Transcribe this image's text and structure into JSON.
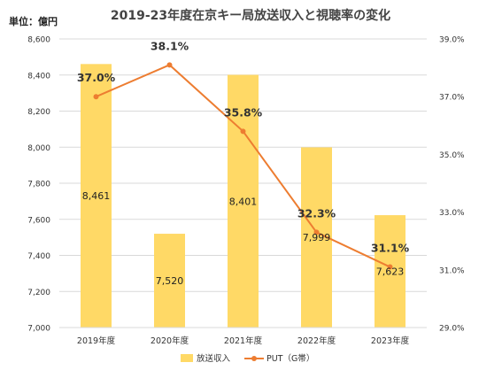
{
  "chart_data": {
    "type": "bar",
    "title": "2019-23年度在京キー局放送収入と視聴率の変化",
    "unit_label": "単位：億円",
    "categories": [
      "2019年度",
      "2020年度",
      "2021年度",
      "2022年度",
      "2023年度"
    ],
    "series": [
      {
        "name": "放送収入",
        "type": "bar",
        "axis": "left",
        "values": [
          8461,
          7520,
          8401,
          7999,
          7623
        ],
        "labels": [
          "8,461",
          "7,520",
          "8,401",
          "7,999",
          "7,623"
        ],
        "color": "#FFD966"
      },
      {
        "name": "PUT（G帯）",
        "type": "line",
        "axis": "right",
        "values": [
          37.0,
          38.1,
          35.8,
          32.3,
          31.1
        ],
        "labels": [
          "37.0%",
          "38.1%",
          "35.8%",
          "32.3%",
          "31.1%"
        ],
        "color": "#ED7D31"
      }
    ],
    "y_left": {
      "ylim": [
        7000,
        8600
      ],
      "ticks": [
        7000,
        7200,
        7400,
        7600,
        7800,
        8000,
        8200,
        8400,
        8600
      ],
      "tick_labels": [
        "7,000",
        "7,200",
        "7,400",
        "7,600",
        "7,800",
        "8,000",
        "8,200",
        "8,400",
        "8,600"
      ]
    },
    "y_right": {
      "ylim": [
        29.0,
        39.0
      ],
      "ticks": [
        29.0,
        31.0,
        33.0,
        35.0,
        37.0,
        39.0
      ],
      "tick_labels": [
        "29.0%",
        "31.0%",
        "33.0%",
        "35.0%",
        "37.0%",
        "39.0%"
      ]
    },
    "grid": true,
    "legend_position": "bottom-center"
  }
}
